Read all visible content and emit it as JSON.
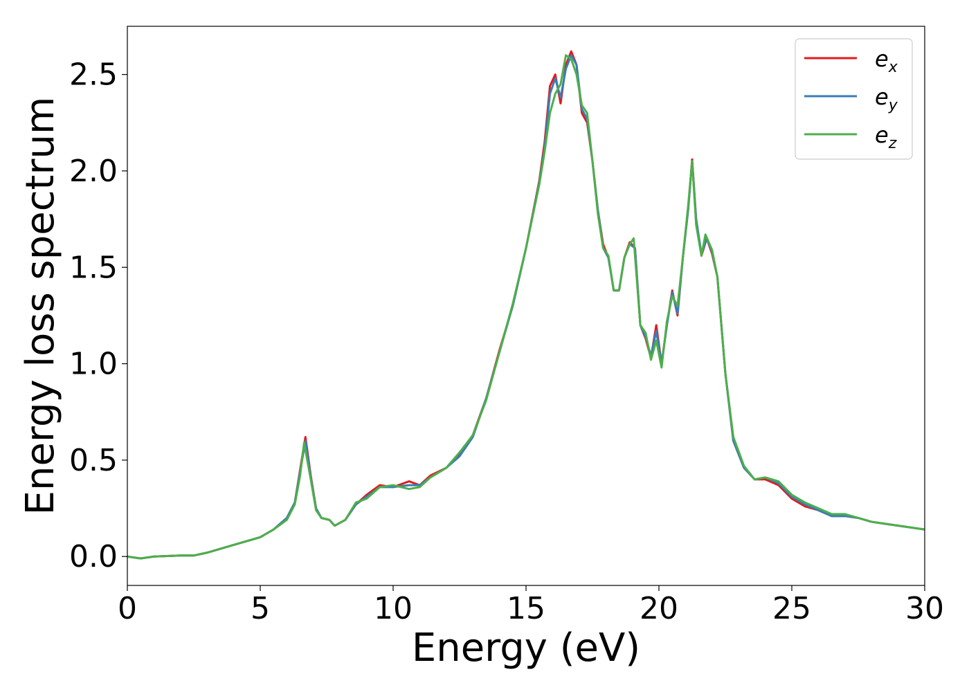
{
  "chart_data": {
    "type": "line",
    "title": "",
    "xlabel": "Energy (eV)",
    "ylabel": "Energy loss spectrum",
    "xlim": [
      0,
      30
    ],
    "ylim": [
      -0.15,
      2.75
    ],
    "xticks": [
      0,
      5,
      10,
      15,
      20,
      25,
      30
    ],
    "xtick_labels": [
      "0",
      "5",
      "10",
      "15",
      "20",
      "25",
      "30"
    ],
    "yticks": [
      0.0,
      0.5,
      1.0,
      1.5,
      2.0,
      2.5
    ],
    "ytick_labels": [
      "0.0",
      "0.5",
      "1.0",
      "1.5",
      "2.0",
      "2.5"
    ],
    "grid": false,
    "legend_position": "top-right",
    "series": [
      {
        "name": "e_x",
        "label_main": "e",
        "label_sub": "x",
        "color": "#e41a1c",
        "points": [
          [
            0,
            0
          ],
          [
            0.5,
            -0.01
          ],
          [
            1,
            0
          ],
          [
            2,
            0.005
          ],
          [
            2.5,
            0.005
          ],
          [
            3,
            0.02
          ],
          [
            4,
            0.06
          ],
          [
            5,
            0.1
          ],
          [
            5.5,
            0.14
          ],
          [
            6,
            0.2
          ],
          [
            6.3,
            0.28
          ],
          [
            6.5,
            0.45
          ],
          [
            6.7,
            0.62
          ],
          [
            6.9,
            0.42
          ],
          [
            7.1,
            0.25
          ],
          [
            7.3,
            0.2
          ],
          [
            7.6,
            0.19
          ],
          [
            7.8,
            0.16
          ],
          [
            8.2,
            0.19
          ],
          [
            8.6,
            0.27
          ],
          [
            9,
            0.32
          ],
          [
            9.5,
            0.37
          ],
          [
            10,
            0.36
          ],
          [
            10.6,
            0.39
          ],
          [
            11,
            0.37
          ],
          [
            11.4,
            0.42
          ],
          [
            12,
            0.46
          ],
          [
            12.5,
            0.53
          ],
          [
            13,
            0.63
          ],
          [
            13.5,
            0.82
          ],
          [
            14,
            1.07
          ],
          [
            14.5,
            1.3
          ],
          [
            15,
            1.6
          ],
          [
            15.5,
            1.95
          ],
          [
            15.7,
            2.15
          ],
          [
            15.9,
            2.44
          ],
          [
            16.1,
            2.5
          ],
          [
            16.3,
            2.35
          ],
          [
            16.5,
            2.55
          ],
          [
            16.7,
            2.62
          ],
          [
            16.9,
            2.55
          ],
          [
            17.1,
            2.3
          ],
          [
            17.3,
            2.25
          ],
          [
            17.5,
            2.05
          ],
          [
            17.7,
            1.8
          ],
          [
            17.9,
            1.62
          ],
          [
            18.1,
            1.55
          ],
          [
            18.3,
            1.38
          ],
          [
            18.5,
            1.38
          ],
          [
            18.7,
            1.55
          ],
          [
            18.9,
            1.63
          ],
          [
            19.1,
            1.6
          ],
          [
            19.3,
            1.2
          ],
          [
            19.5,
            1.13
          ],
          [
            19.7,
            1.03
          ],
          [
            19.9,
            1.2
          ],
          [
            20.1,
            1.0
          ],
          [
            20.3,
            1.2
          ],
          [
            20.5,
            1.38
          ],
          [
            20.7,
            1.25
          ],
          [
            20.9,
            1.55
          ],
          [
            21.1,
            1.8
          ],
          [
            21.25,
            2.06
          ],
          [
            21.4,
            1.75
          ],
          [
            21.6,
            1.56
          ],
          [
            21.8,
            1.65
          ],
          [
            22,
            1.57
          ],
          [
            22.2,
            1.45
          ],
          [
            22.5,
            0.95
          ],
          [
            22.8,
            0.6
          ],
          [
            23.2,
            0.46
          ],
          [
            23.6,
            0.4
          ],
          [
            24,
            0.4
          ],
          [
            24.5,
            0.37
          ],
          [
            25,
            0.3
          ],
          [
            25.5,
            0.26
          ],
          [
            26,
            0.24
          ],
          [
            26.5,
            0.21
          ],
          [
            27,
            0.21
          ],
          [
            27.5,
            0.2
          ],
          [
            28,
            0.18
          ],
          [
            29,
            0.16
          ],
          [
            30,
            0.14
          ]
        ]
      },
      {
        "name": "e_y",
        "label_main": "e",
        "label_sub": "y",
        "color": "#377eb8",
        "points": [
          [
            0,
            0
          ],
          [
            0.5,
            -0.01
          ],
          [
            1,
            0
          ],
          [
            2,
            0.005
          ],
          [
            2.5,
            0.005
          ],
          [
            3,
            0.02
          ],
          [
            4,
            0.06
          ],
          [
            5,
            0.1
          ],
          [
            5.5,
            0.14
          ],
          [
            6,
            0.2
          ],
          [
            6.3,
            0.28
          ],
          [
            6.5,
            0.44
          ],
          [
            6.7,
            0.6
          ],
          [
            6.9,
            0.41
          ],
          [
            7.1,
            0.25
          ],
          [
            7.3,
            0.2
          ],
          [
            7.6,
            0.19
          ],
          [
            7.8,
            0.16
          ],
          [
            8.2,
            0.19
          ],
          [
            8.6,
            0.27
          ],
          [
            9,
            0.31
          ],
          [
            9.5,
            0.36
          ],
          [
            10,
            0.36
          ],
          [
            10.6,
            0.37
          ],
          [
            11,
            0.37
          ],
          [
            11.4,
            0.41
          ],
          [
            12,
            0.46
          ],
          [
            12.5,
            0.52
          ],
          [
            13,
            0.62
          ],
          [
            13.5,
            0.82
          ],
          [
            14,
            1.06
          ],
          [
            14.5,
            1.3
          ],
          [
            15,
            1.6
          ],
          [
            15.5,
            1.94
          ],
          [
            15.7,
            2.12
          ],
          [
            15.9,
            2.4
          ],
          [
            16.1,
            2.48
          ],
          [
            16.3,
            2.38
          ],
          [
            16.5,
            2.53
          ],
          [
            16.7,
            2.6
          ],
          [
            16.9,
            2.55
          ],
          [
            17.1,
            2.32
          ],
          [
            17.3,
            2.27
          ],
          [
            17.5,
            2.05
          ],
          [
            17.7,
            1.8
          ],
          [
            17.9,
            1.6
          ],
          [
            18.1,
            1.55
          ],
          [
            18.3,
            1.38
          ],
          [
            18.5,
            1.38
          ],
          [
            18.7,
            1.55
          ],
          [
            18.9,
            1.62
          ],
          [
            19.1,
            1.6
          ],
          [
            19.3,
            1.2
          ],
          [
            19.5,
            1.14
          ],
          [
            19.7,
            1.04
          ],
          [
            19.9,
            1.17
          ],
          [
            20.1,
            1.0
          ],
          [
            20.3,
            1.2
          ],
          [
            20.5,
            1.37
          ],
          [
            20.7,
            1.26
          ],
          [
            20.9,
            1.55
          ],
          [
            21.1,
            1.8
          ],
          [
            21.25,
            2.05
          ],
          [
            21.4,
            1.75
          ],
          [
            21.6,
            1.57
          ],
          [
            21.8,
            1.65
          ],
          [
            22,
            1.58
          ],
          [
            22.2,
            1.45
          ],
          [
            22.5,
            0.95
          ],
          [
            22.8,
            0.6
          ],
          [
            23.2,
            0.46
          ],
          [
            23.6,
            0.4
          ],
          [
            24,
            0.41
          ],
          [
            24.5,
            0.38
          ],
          [
            25,
            0.31
          ],
          [
            25.5,
            0.27
          ],
          [
            26,
            0.24
          ],
          [
            26.5,
            0.21
          ],
          [
            27,
            0.21
          ],
          [
            27.5,
            0.2
          ],
          [
            28,
            0.18
          ],
          [
            29,
            0.16
          ],
          [
            30,
            0.14
          ]
        ]
      },
      {
        "name": "e_z",
        "label_main": "e",
        "label_sub": "z",
        "color": "#4daf4a",
        "points": [
          [
            0,
            0
          ],
          [
            0.5,
            -0.01
          ],
          [
            1,
            0
          ],
          [
            2,
            0.005
          ],
          [
            2.5,
            0.005
          ],
          [
            3,
            0.02
          ],
          [
            4,
            0.06
          ],
          [
            5,
            0.1
          ],
          [
            5.5,
            0.14
          ],
          [
            6,
            0.19
          ],
          [
            6.3,
            0.27
          ],
          [
            6.5,
            0.42
          ],
          [
            6.65,
            0.59
          ],
          [
            6.9,
            0.4
          ],
          [
            7.1,
            0.24
          ],
          [
            7.3,
            0.2
          ],
          [
            7.6,
            0.19
          ],
          [
            7.8,
            0.16
          ],
          [
            8.2,
            0.19
          ],
          [
            8.6,
            0.28
          ],
          [
            9,
            0.3
          ],
          [
            9.5,
            0.36
          ],
          [
            10,
            0.37
          ],
          [
            10.6,
            0.35
          ],
          [
            11,
            0.36
          ],
          [
            11.4,
            0.41
          ],
          [
            12,
            0.46
          ],
          [
            12.5,
            0.54
          ],
          [
            13,
            0.63
          ],
          [
            13.5,
            0.81
          ],
          [
            14,
            1.06
          ],
          [
            14.5,
            1.31
          ],
          [
            15,
            1.6
          ],
          [
            15.5,
            1.93
          ],
          [
            15.7,
            2.1
          ],
          [
            15.9,
            2.3
          ],
          [
            16.1,
            2.4
          ],
          [
            16.3,
            2.45
          ],
          [
            16.5,
            2.6
          ],
          [
            16.7,
            2.58
          ],
          [
            16.9,
            2.5
          ],
          [
            17.1,
            2.34
          ],
          [
            17.3,
            2.3
          ],
          [
            17.5,
            2.05
          ],
          [
            17.7,
            1.78
          ],
          [
            17.9,
            1.6
          ],
          [
            18.1,
            1.56
          ],
          [
            18.3,
            1.38
          ],
          [
            18.5,
            1.38
          ],
          [
            18.7,
            1.55
          ],
          [
            18.9,
            1.62
          ],
          [
            19.05,
            1.65
          ],
          [
            19.3,
            1.2
          ],
          [
            19.5,
            1.16
          ],
          [
            19.7,
            1.02
          ],
          [
            19.9,
            1.12
          ],
          [
            20.1,
            0.98
          ],
          [
            20.3,
            1.22
          ],
          [
            20.5,
            1.35
          ],
          [
            20.7,
            1.3
          ],
          [
            20.9,
            1.55
          ],
          [
            21.1,
            1.82
          ],
          [
            21.25,
            2.05
          ],
          [
            21.4,
            1.72
          ],
          [
            21.6,
            1.56
          ],
          [
            21.75,
            1.67
          ],
          [
            22,
            1.59
          ],
          [
            22.2,
            1.45
          ],
          [
            22.5,
            0.95
          ],
          [
            22.8,
            0.62
          ],
          [
            23.2,
            0.47
          ],
          [
            23.6,
            0.4
          ],
          [
            24,
            0.41
          ],
          [
            24.5,
            0.39
          ],
          [
            25,
            0.32
          ],
          [
            25.5,
            0.28
          ],
          [
            26,
            0.25
          ],
          [
            26.5,
            0.22
          ],
          [
            27,
            0.22
          ],
          [
            27.5,
            0.2
          ],
          [
            28,
            0.18
          ],
          [
            29,
            0.16
          ],
          [
            30,
            0.14
          ]
        ]
      }
    ]
  }
}
